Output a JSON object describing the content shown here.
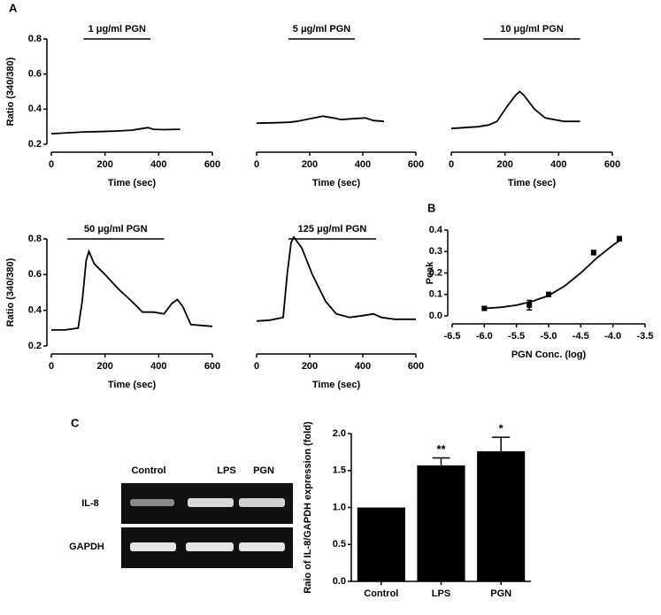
{
  "panels": [
    "A",
    "B",
    "C"
  ],
  "gel": {
    "lanes": [
      "Control",
      "LPS",
      "PGN"
    ],
    "rows": [
      "IL-8",
      "GAPDH"
    ]
  },
  "chart_data": [
    {
      "type": "line",
      "annotation": "1 μg/ml PGN",
      "annotation_range": [
        120,
        370
      ],
      "x": [
        0,
        60,
        120,
        180,
        240,
        300,
        340,
        360,
        380,
        420,
        480
      ],
      "values": [
        0.26,
        0.265,
        0.27,
        0.272,
        0.275,
        0.28,
        0.29,
        0.295,
        0.285,
        0.283,
        0.285
      ],
      "xlim": [
        0,
        600
      ],
      "xticks": [
        0,
        200,
        400,
        600
      ],
      "ylim": [
        0.2,
        0.8
      ],
      "yticks": [
        0.2,
        0.4,
        0.6,
        0.8
      ],
      "xlabel": "Time (sec)",
      "ylabel": "Ratio (340/380)"
    },
    {
      "type": "line",
      "annotation": "5 μg/ml PGN",
      "annotation_range": [
        120,
        370
      ],
      "x": [
        0,
        60,
        120,
        150,
        200,
        250,
        290,
        320,
        360,
        410,
        440,
        480
      ],
      "values": [
        0.32,
        0.322,
        0.325,
        0.33,
        0.345,
        0.36,
        0.35,
        0.34,
        0.345,
        0.35,
        0.335,
        0.33
      ],
      "xlim": [
        0,
        600
      ],
      "xticks": [
        0,
        200,
        400,
        600
      ],
      "ylim": [
        0.2,
        0.8
      ],
      "xlabel": "Time (sec)"
    },
    {
      "type": "line",
      "annotation": "10 μg/ml PGN",
      "annotation_range": [
        120,
        480
      ],
      "x": [
        0,
        50,
        100,
        140,
        170,
        210,
        240,
        255,
        270,
        290,
        310,
        350,
        420,
        480
      ],
      "values": [
        0.29,
        0.295,
        0.3,
        0.31,
        0.33,
        0.42,
        0.48,
        0.5,
        0.48,
        0.44,
        0.4,
        0.35,
        0.33,
        0.33
      ],
      "xlim": [
        0,
        600
      ],
      "xticks": [
        0,
        200,
        400,
        600
      ],
      "ylim": [
        0.2,
        0.8
      ],
      "xlabel": "Time (sec)"
    },
    {
      "type": "line",
      "annotation": "50 μg/ml PGN",
      "annotation_range": [
        60,
        420
      ],
      "x": [
        0,
        50,
        100,
        115,
        130,
        140,
        160,
        200,
        250,
        300,
        340,
        380,
        420,
        450,
        470,
        490,
        520,
        600
      ],
      "values": [
        0.29,
        0.29,
        0.3,
        0.45,
        0.68,
        0.73,
        0.66,
        0.6,
        0.52,
        0.45,
        0.39,
        0.39,
        0.38,
        0.44,
        0.46,
        0.42,
        0.32,
        0.31
      ],
      "xlim": [
        0,
        600
      ],
      "xticks": [
        0,
        200,
        400,
        600
      ],
      "ylim": [
        0.2,
        0.8
      ],
      "yticks": [
        0.2,
        0.4,
        0.6,
        0.8
      ],
      "xlabel": "Time (sec)",
      "ylabel": "Ratio (340/380)"
    },
    {
      "type": "line",
      "annotation": "125 μg/ml PGN",
      "annotation_range": [
        120,
        450
      ],
      "x": [
        0,
        50,
        100,
        115,
        130,
        140,
        170,
        210,
        260,
        300,
        350,
        400,
        440,
        470,
        520,
        600
      ],
      "values": [
        0.34,
        0.345,
        0.36,
        0.6,
        0.78,
        0.81,
        0.75,
        0.6,
        0.45,
        0.38,
        0.36,
        0.37,
        0.38,
        0.36,
        0.35,
        0.35
      ],
      "xlim": [
        0,
        600
      ],
      "xticks": [
        0,
        200,
        400,
        600
      ],
      "ylim": [
        0.2,
        0.8
      ],
      "xlabel": "Time (sec)"
    },
    {
      "type": "scatter",
      "x": [
        -6,
        -5.3,
        -5,
        -4.3,
        -3.9
      ],
      "values": [
        0.035,
        0.05,
        0.1,
        0.295,
        0.36
      ],
      "errors": [
        0.008,
        0.022,
        0.01,
        0.01,
        0.01
      ],
      "fit": {
        "x": [
          -6,
          -5.75,
          -5.5,
          -5.25,
          -5,
          -4.75,
          -4.5,
          -4.25,
          -4,
          -3.9
        ],
        "values": [
          0.035,
          0.04,
          0.05,
          0.068,
          0.095,
          0.14,
          0.2,
          0.27,
          0.33,
          0.35
        ]
      },
      "xlim": [
        -6.5,
        -3.5
      ],
      "xticks": [
        -6.5,
        {
          "value": -6,
          "label": "-6.0"
        },
        -5.5,
        {
          "value": -5,
          "label": "-5.0"
        },
        -4.5,
        {
          "value": -4,
          "label": "-4.0"
        },
        -3.5
      ],
      "ylim": [
        0,
        0.4
      ],
      "yticks": [
        {
          "value": 0,
          "label": "0.0"
        },
        0.1,
        0.2,
        0.3,
        0.4
      ],
      "xlabel": "PGN Conc. (log)",
      "ylabel": "Peak"
    },
    {
      "type": "bar",
      "categories": [
        "Control",
        "LPS",
        "PGN"
      ],
      "values": [
        1.0,
        1.57,
        1.76
      ],
      "errors": [
        0,
        0.1,
        0.19
      ],
      "significance": [
        null,
        "**",
        "*"
      ],
      "color": "#000000",
      "ylim": [
        0,
        2
      ],
      "yticks": [
        {
          "value": 0,
          "label": "0.0"
        },
        0.5,
        {
          "value": 1,
          "label": "1.0"
        },
        1.5,
        {
          "value": 2,
          "label": "2.0"
        }
      ],
      "ylabel": "Raio of IL-8/GAPDH expression (fold)"
    }
  ]
}
